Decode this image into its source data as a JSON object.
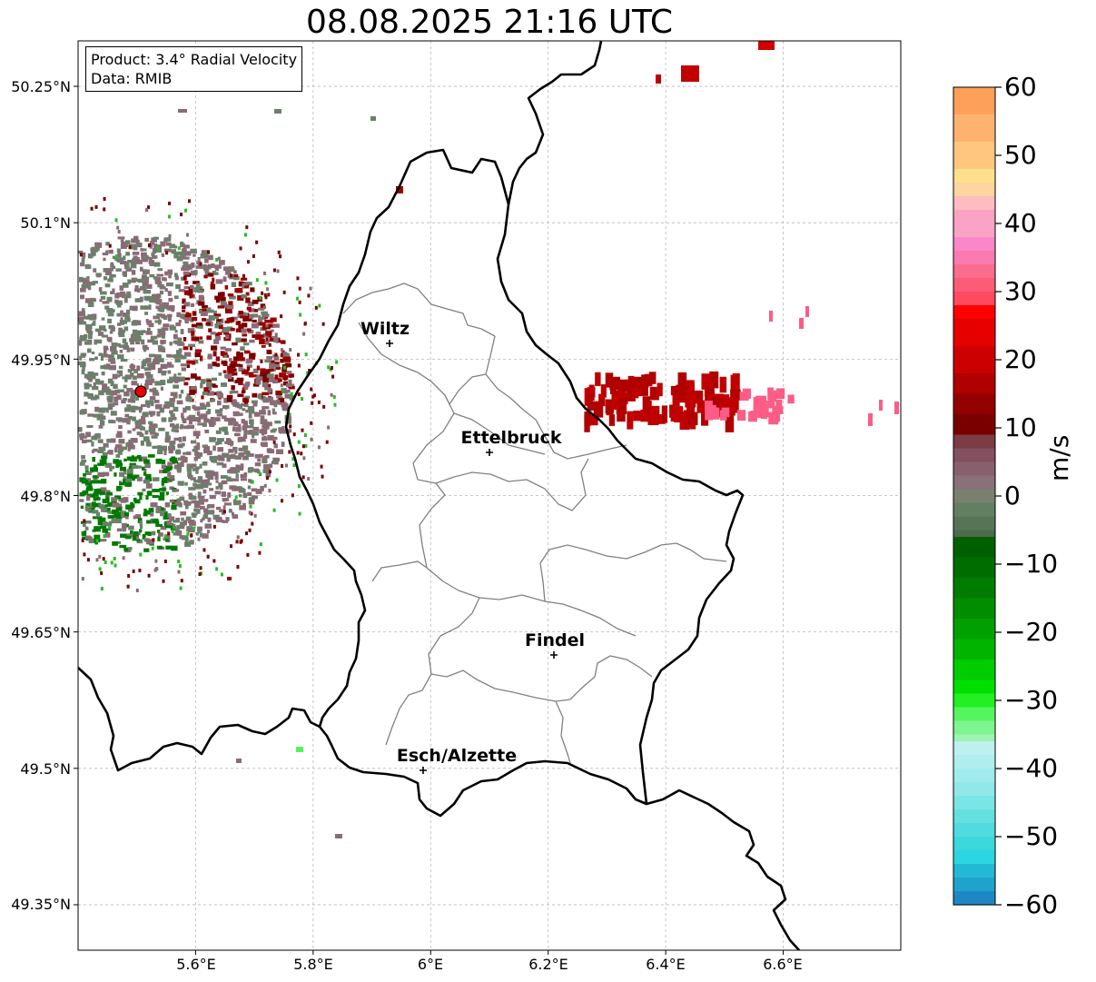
{
  "title": "08.08.2025 21:16 UTC",
  "info": {
    "product": "Product: 3.4° Radial Velocity",
    "data_source": "Data: RMIB"
  },
  "cities": [
    {
      "name": "Wiltz",
      "lon": 5.93,
      "lat": 49.966
    },
    {
      "name": "Ettelbruck",
      "lon": 6.1,
      "lat": 49.847
    },
    {
      "name": "Findel",
      "lon": 6.21,
      "lat": 49.627
    },
    {
      "name": "Esch/Alzette",
      "lon": 5.99,
      "lat": 49.5
    }
  ],
  "radar_site": {
    "lon": 5.505,
    "lat": 49.914
  },
  "map_extent": {
    "lon_min": 5.4,
    "lon_max": 6.8,
    "lat_min": 49.3,
    "lat_max": 50.3
  },
  "lat_ticks": [
    {
      "value": 50.25,
      "label": "50.25°N"
    },
    {
      "value": 50.1,
      "label": "50.1°N"
    },
    {
      "value": 49.95,
      "label": "49.95°N"
    },
    {
      "value": 49.8,
      "label": "49.8°N"
    },
    {
      "value": 49.65,
      "label": "49.65°N"
    },
    {
      "value": 49.5,
      "label": "49.5°N"
    },
    {
      "value": 49.35,
      "label": "49.35°N"
    }
  ],
  "lon_ticks": [
    {
      "value": 5.6,
      "label": "5.6°E"
    },
    {
      "value": 5.8,
      "label": "5.8°E"
    },
    {
      "value": 6.0,
      "label": "6°E"
    },
    {
      "value": 6.2,
      "label": "6.2°E"
    },
    {
      "value": 6.4,
      "label": "6.4°E"
    },
    {
      "value": 6.6,
      "label": "6.6°E"
    }
  ],
  "colorbar": {
    "unit": "m/s",
    "min": -60,
    "max": 60,
    "ticks": [
      {
        "value": 60,
        "label": "60"
      },
      {
        "value": 50,
        "label": "50"
      },
      {
        "value": 40,
        "label": "40"
      },
      {
        "value": 30,
        "label": "30"
      },
      {
        "value": 20,
        "label": "20"
      },
      {
        "value": 10,
        "label": "10"
      },
      {
        "value": 0,
        "label": "0"
      },
      {
        "value": -10,
        "label": "−10"
      },
      {
        "value": -20,
        "label": "−20"
      },
      {
        "value": -30,
        "label": "−30"
      },
      {
        "value": -40,
        "label": "−40"
      },
      {
        "value": -50,
        "label": "−50"
      },
      {
        "value": -60,
        "label": "−60"
      }
    ],
    "bands": [
      {
        "from": 56,
        "to": 60,
        "color": "#fda05a"
      },
      {
        "from": 52,
        "to": 56,
        "color": "#fdb36f"
      },
      {
        "from": 48,
        "to": 52,
        "color": "#fec67f"
      },
      {
        "from": 46,
        "to": 48,
        "color": "#fee08b"
      },
      {
        "from": 44,
        "to": 46,
        "color": "#fdd5a0"
      },
      {
        "from": 42,
        "to": 44,
        "color": "#fcbcc0"
      },
      {
        "from": 38,
        "to": 42,
        "color": "#fba3c4"
      },
      {
        "from": 36,
        "to": 38,
        "color": "#fa88c8"
      },
      {
        "from": 34,
        "to": 36,
        "color": "#f97ab0"
      },
      {
        "from": 32,
        "to": 34,
        "color": "#fb6d8f"
      },
      {
        "from": 30,
        "to": 32,
        "color": "#fd5c76"
      },
      {
        "from": 28,
        "to": 30,
        "color": "#fd4a5e"
      },
      {
        "from": 26,
        "to": 28,
        "color": "#fe0000"
      },
      {
        "from": 22,
        "to": 26,
        "color": "#e60000"
      },
      {
        "from": 18,
        "to": 22,
        "color": "#cc0000"
      },
      {
        "from": 15,
        "to": 18,
        "color": "#b00000"
      },
      {
        "from": 12,
        "to": 15,
        "color": "#930000"
      },
      {
        "from": 9,
        "to": 12,
        "color": "#7a0000"
      },
      {
        "from": 7,
        "to": 9,
        "color": "#7b3c44"
      },
      {
        "from": 5,
        "to": 7,
        "color": "#835060"
      },
      {
        "from": 3,
        "to": 5,
        "color": "#87606e"
      },
      {
        "from": 1,
        "to": 3,
        "color": "#8a7078"
      },
      {
        "from": -1,
        "to": 1,
        "color": "#7a8070"
      },
      {
        "from": -3,
        "to": -1,
        "color": "#627f62"
      },
      {
        "from": -5,
        "to": -3,
        "color": "#577457"
      },
      {
        "from": -6,
        "to": -5,
        "color": "#4c6a4c"
      },
      {
        "from": -9,
        "to": -6,
        "color": "#006000"
      },
      {
        "from": -12,
        "to": -9,
        "color": "#006d00"
      },
      {
        "from": -15,
        "to": -12,
        "color": "#007d00"
      },
      {
        "from": -18,
        "to": -15,
        "color": "#008e00"
      },
      {
        "from": -21,
        "to": -18,
        "color": "#00a000"
      },
      {
        "from": -24,
        "to": -21,
        "color": "#00b400"
      },
      {
        "from": -27,
        "to": -24,
        "color": "#00cc00"
      },
      {
        "from": -29,
        "to": -27,
        "color": "#00e000"
      },
      {
        "from": -31,
        "to": -29,
        "color": "#22f022"
      },
      {
        "from": -33,
        "to": -31,
        "color": "#55f560"
      },
      {
        "from": -35,
        "to": -33,
        "color": "#7ef590"
      },
      {
        "from": -36,
        "to": -35,
        "color": "#a0f2b0"
      },
      {
        "from": -38,
        "to": -36,
        "color": "#bef0f0"
      },
      {
        "from": -40,
        "to": -38,
        "color": "#b0eeee"
      },
      {
        "from": -42,
        "to": -40,
        "color": "#a0ecec"
      },
      {
        "from": -44,
        "to": -42,
        "color": "#90e8e8"
      },
      {
        "from": -46,
        "to": -44,
        "color": "#7be4e4"
      },
      {
        "from": -48,
        "to": -46,
        "color": "#63e0e0"
      },
      {
        "from": -50,
        "to": -48,
        "color": "#50dcde"
      },
      {
        "from": -52,
        "to": -50,
        "color": "#3cd8dc"
      },
      {
        "from": -54,
        "to": -52,
        "color": "#2cd6e0"
      },
      {
        "from": -56,
        "to": -54,
        "color": "#22b8d6"
      },
      {
        "from": -58,
        "to": -56,
        "color": "#1fa3cc"
      },
      {
        "from": -60,
        "to": -58,
        "color": "#1f86c4"
      }
    ]
  },
  "colors": {
    "outgoing_dark": "#7a0000",
    "outgoing_mid": "#c00000",
    "outgoing_light": "#fd5c86",
    "near_zero_red": "#8a6b75",
    "near_zero_green": "#6b806b",
    "incoming": "#007a00",
    "radar_marker": "#ee0000"
  }
}
